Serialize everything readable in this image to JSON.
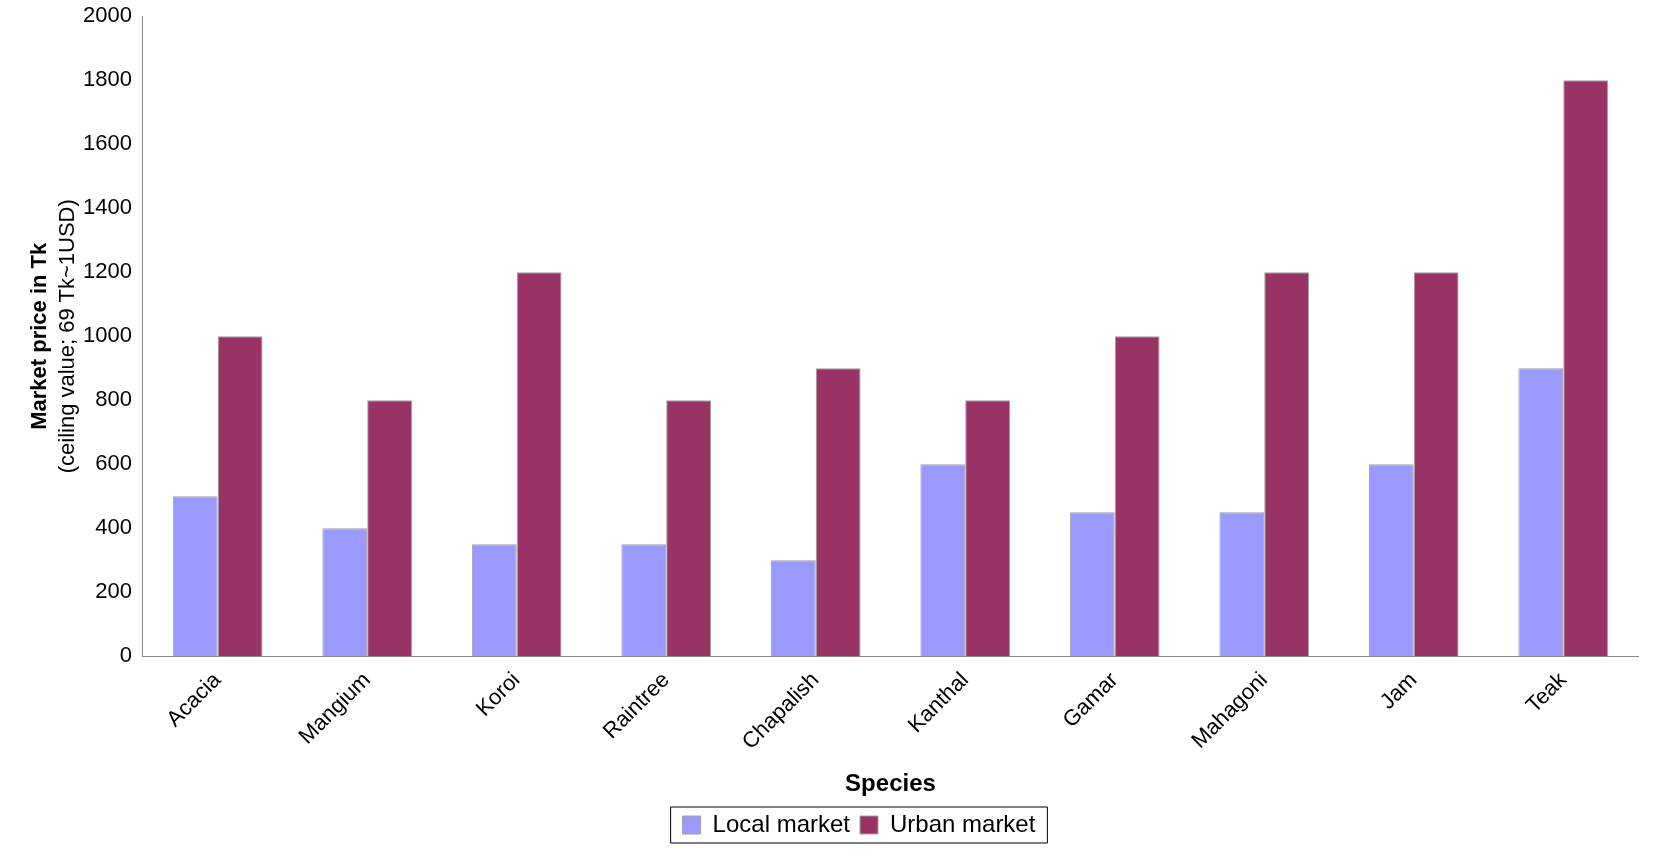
{
  "chart_data": {
    "type": "bar",
    "xlabel": "Species",
    "ylabel": "Market price in Tk\n(ceiling value; 69 Tk~1USD)",
    "categories": [
      "Acacia",
      "Mangium",
      "Koroi",
      "Raintree",
      "Chapalish",
      "Kanthal",
      "Gamar",
      "Mahagoni",
      "Jam",
      "Teak"
    ],
    "series": [
      {
        "name": "Local market",
        "color": "#9999ff",
        "values": [
          500,
          400,
          350,
          350,
          300,
          600,
          450,
          450,
          600,
          900
        ]
      },
      {
        "name": "Urban market",
        "color": "#993366",
        "values": [
          1000,
          800,
          1200,
          800,
          900,
          800,
          1000,
          1200,
          1200,
          1800
        ]
      }
    ],
    "ylim": [
      0,
      2000
    ],
    "yticks": [
      0,
      200,
      400,
      600,
      800,
      1000,
      1200,
      1400,
      1600,
      1800,
      2000
    ],
    "grid": false,
    "legend": "bottom"
  }
}
